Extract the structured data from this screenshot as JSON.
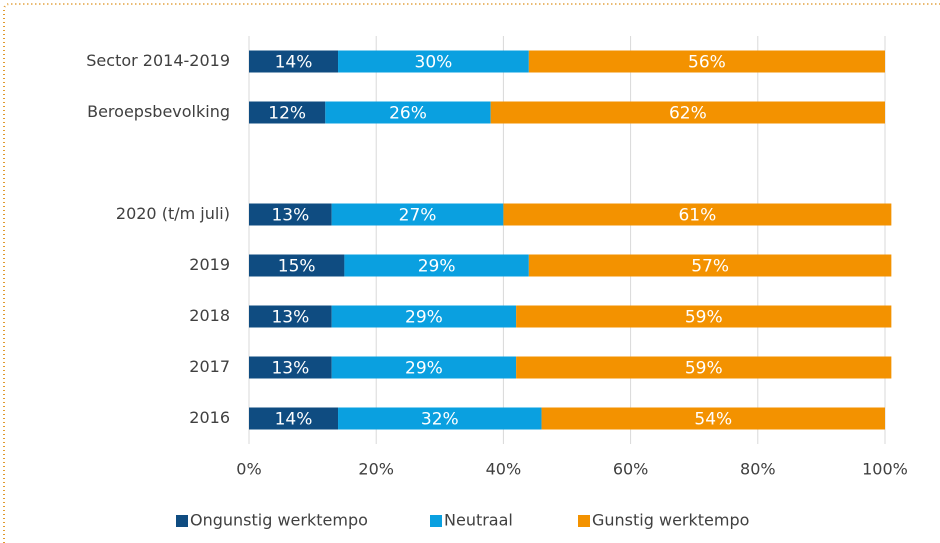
{
  "chart_data": {
    "type": "stacked-bar-horizontal",
    "categories": [
      "Sector 2014-2019",
      "Beroepsbevolking",
      null,
      "2020 (t/m juli)",
      "2019",
      "2018",
      "2017",
      "2016"
    ],
    "series": [
      {
        "name": "Ongunstig werktempo",
        "color": "#0f4c81",
        "values": [
          14,
          12,
          null,
          13,
          15,
          13,
          13,
          14
        ],
        "value_labels": [
          "14%",
          "12%",
          null,
          "13%",
          "15%",
          "13%",
          "13%",
          "14%"
        ]
      },
      {
        "name": "Neutraal",
        "color": "#0aa0e0",
        "values": [
          30,
          26,
          null,
          27,
          29,
          29,
          29,
          32
        ],
        "value_labels": [
          "30%",
          "26%",
          null,
          "27%",
          "29%",
          "29%",
          "29%",
          "32%"
        ]
      },
      {
        "name": "Gunstig werktempo",
        "color": "#f39200",
        "values": [
          56,
          62,
          null,
          61,
          57,
          59,
          59,
          54
        ],
        "value_labels": [
          "56%",
          "62%",
          null,
          "61%",
          "57%",
          "59%",
          "59%",
          "54%"
        ]
      }
    ],
    "xlim": [
      0,
      100
    ],
    "xticks": [
      {
        "value": 0,
        "label": "0%"
      },
      {
        "value": 20,
        "label": "20%"
      },
      {
        "value": 40,
        "label": "40%"
      },
      {
        "value": 60,
        "label": "60%"
      },
      {
        "value": 80,
        "label": "80%"
      },
      {
        "value": 100,
        "label": "100%"
      }
    ],
    "grid": true,
    "legend": "bottom"
  }
}
